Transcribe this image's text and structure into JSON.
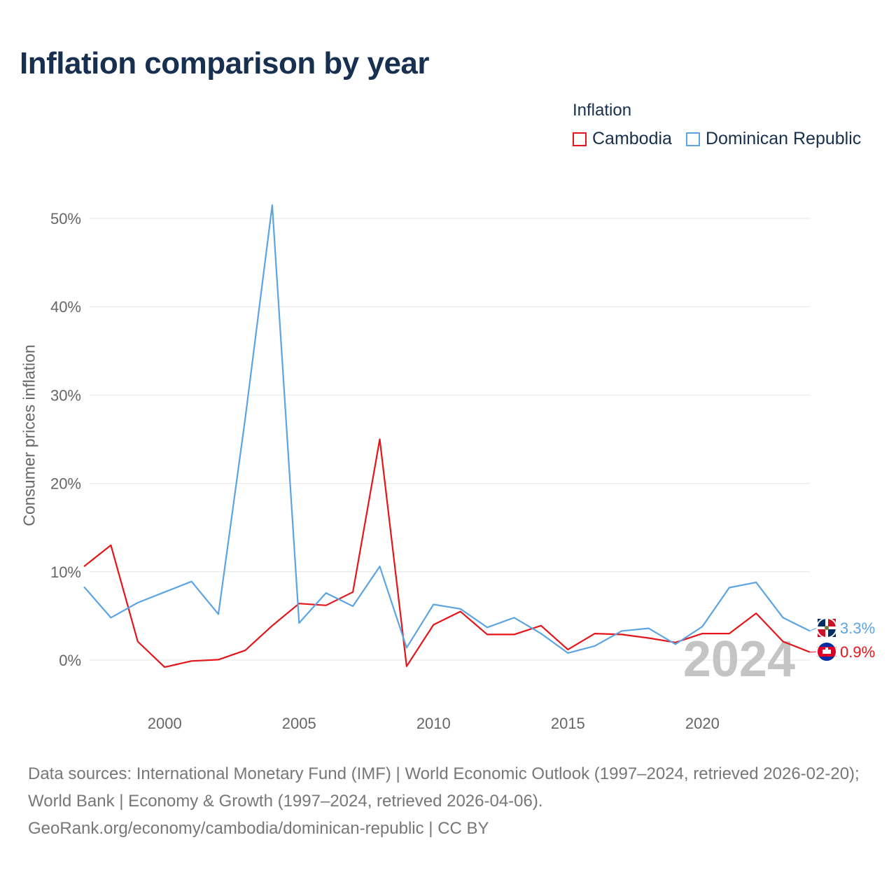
{
  "title": "Inflation comparison by year",
  "legend": {
    "title": "Inflation",
    "items": [
      {
        "label": "Cambodia",
        "color": "#e4151b"
      },
      {
        "label": "Dominican Republic",
        "color": "#5ca4e2"
      }
    ]
  },
  "chart_data": {
    "type": "line",
    "title": "Inflation comparison by year",
    "xlabel": "",
    "ylabel": "Consumer prices inflation",
    "xlim": [
      1997,
      2024
    ],
    "ylim": [
      -5,
      55
    ],
    "xticks": [
      2000,
      2005,
      2010,
      2015,
      2020
    ],
    "yticks": [
      0,
      10,
      20,
      30,
      40,
      50
    ],
    "ytick_labels": [
      "0%",
      "10%",
      "20%",
      "30%",
      "40%",
      "50%"
    ],
    "grid": true,
    "legend_position": "top-right",
    "x": [
      1997,
      1998,
      1999,
      2000,
      2001,
      2002,
      2003,
      2004,
      2005,
      2006,
      2007,
      2008,
      2009,
      2010,
      2011,
      2012,
      2013,
      2014,
      2015,
      2016,
      2017,
      2018,
      2019,
      2020,
      2021,
      2022,
      2023,
      2024
    ],
    "series": [
      {
        "name": "Cambodia",
        "color": "#e4151b",
        "values": [
          10.6,
          13,
          2.1,
          -0.8,
          -0.1,
          0.05,
          1.1,
          3.9,
          6.4,
          6.2,
          7.7,
          25,
          -0.7,
          4,
          5.5,
          2.9,
          2.9,
          3.9,
          1.2,
          3,
          2.9,
          2.5,
          2,
          3,
          3,
          5.3,
          2.1,
          0.9
        ],
        "end_label": "0.9%"
      },
      {
        "name": "Dominican Republic",
        "color": "#5ca4e2",
        "values": [
          8.3,
          4.8,
          6.5,
          7.7,
          8.9,
          5.2,
          27.4,
          51.5,
          4.2,
          7.6,
          6.1,
          10.6,
          1.4,
          6.3,
          5.8,
          3.7,
          4.8,
          3,
          0.8,
          1.6,
          3.3,
          3.6,
          1.8,
          3.8,
          8.2,
          8.8,
          4.8,
          3.3
        ],
        "end_label": "3.3%"
      }
    ],
    "current_year_label": "2024"
  },
  "sources_line1": "Data sources: International Monetary Fund (IMF) | World Economic Outlook (1997–2024, retrieved 2026-02-20); World Bank | Economy & Growth (1997–2024, retrieved 2026-04-06).",
  "sources_line2": "GeoRank.org/economy/cambodia/dominican-republic | CC BY"
}
